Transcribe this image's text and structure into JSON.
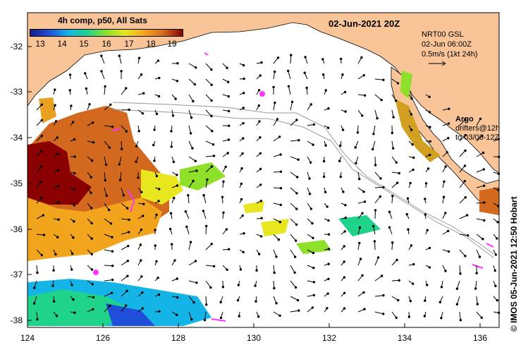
{
  "colorbar": {
    "title": "4h comp, p50, All Sats",
    "ticks": [
      "13",
      "14",
      "15",
      "16",
      "17",
      "18",
      "19"
    ],
    "colors": [
      "#1a1a8c",
      "#1f4fd8",
      "#15b4e6",
      "#1fd48a",
      "#8fe02a",
      "#e8e61f",
      "#f2a51c",
      "#d2691e",
      "#8b0000"
    ]
  },
  "date_label": "02-Jun-2021 20Z",
  "nrt": {
    "line1": "NRT00 GSL",
    "line2": "02-Jun 06:00Z",
    "line3": "0.5m/s (1kt 24h)"
  },
  "argo": {
    "label": "Argo",
    "line1": "drifters@12h",
    "line2": "to 03/06-12Z",
    "color": "#ff33ff"
  },
  "axes": {
    "lon_labels": [
      "124",
      "126",
      "128",
      "130",
      "132",
      "134",
      "136"
    ],
    "lat_labels": [
      "-32",
      "-33",
      "-34",
      "-35",
      "-36",
      "-37",
      "-38"
    ]
  },
  "credit": "IMOS 05-Jun-2021 12:50 Hobart",
  "copyright": "©",
  "colors": {
    "land": "#f9c598",
    "ocean": "#ffffff",
    "arrow": "#000000"
  }
}
